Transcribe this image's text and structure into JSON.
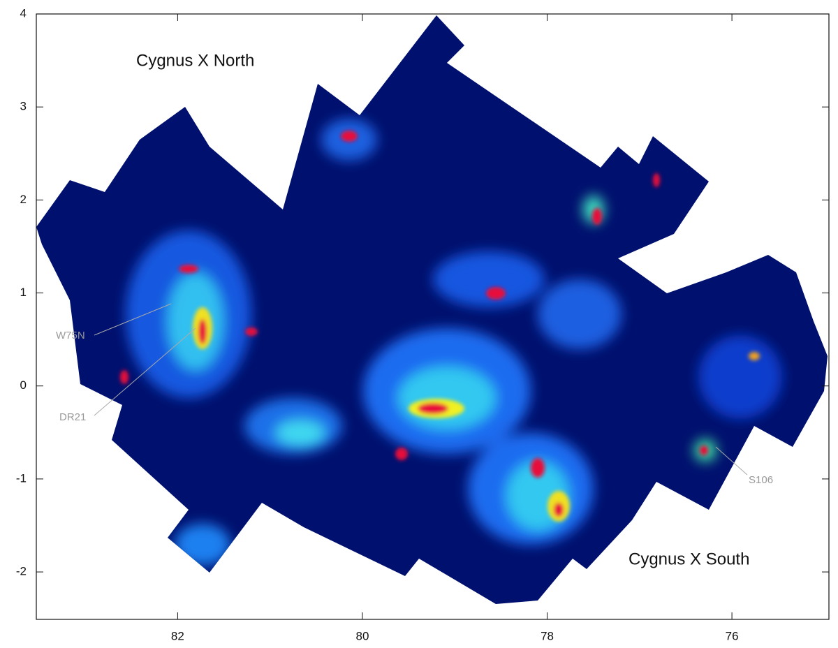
{
  "chart_data": {
    "type": "map",
    "annotations": [
      "Cygnus X North",
      "Cygnus X South",
      "W75N",
      "DR21",
      "S106"
    ],
    "xlim": [
      83.53,
      74.95
    ],
    "xticks": [
      82,
      80,
      78,
      76
    ],
    "ylim": [
      -2.51,
      4
    ],
    "yticks": [
      -2,
      -1,
      0,
      1,
      2,
      3,
      4
    ]
  }
}
